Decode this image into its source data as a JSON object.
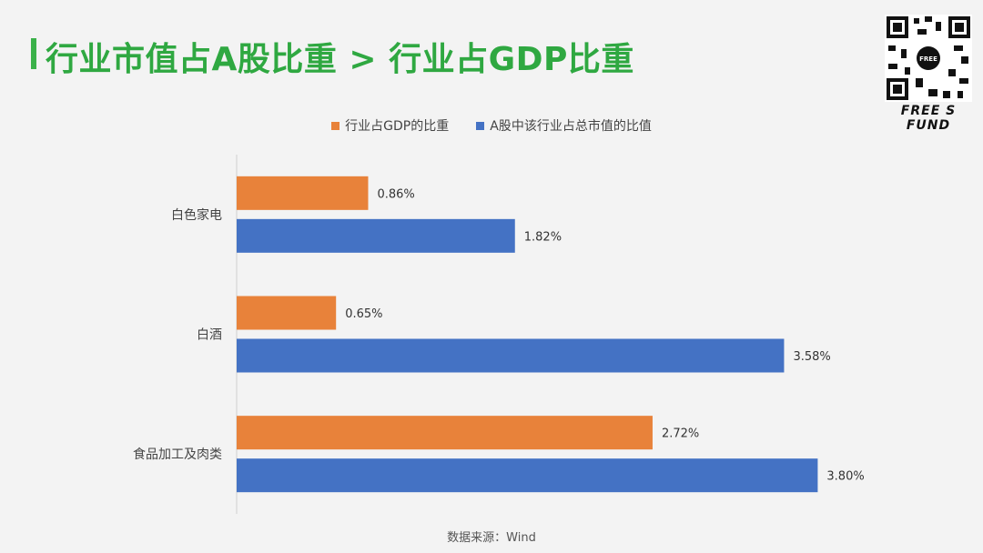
{
  "title": "行业市值占A股比重 > 行业占GDP比重",
  "logo": {
    "text": "FREE S FUND",
    "badge": "FREE"
  },
  "source": "数据来源：Wind",
  "colors": {
    "gdp": "#e8823a",
    "mktcap": "#4472c4",
    "title": "#2fa841"
  },
  "chart_data": {
    "type": "bar",
    "orientation": "horizontal",
    "categories": [
      "白色家电",
      "白酒",
      "食品加工及肉类"
    ],
    "series": [
      {
        "name": "行业占GDP的比重",
        "values": [
          0.86,
          0.65,
          2.72
        ],
        "labels": [
          "0.86%",
          "0.65%",
          "2.72%"
        ]
      },
      {
        "name": "A股中该行业占总市值的比值",
        "values": [
          1.82,
          3.58,
          3.8
        ],
        "labels": [
          "1.82%",
          "3.58%",
          "3.80%"
        ]
      }
    ],
    "xlim": [
      0,
      4
    ],
    "grid": false,
    "legend_position": "top"
  }
}
